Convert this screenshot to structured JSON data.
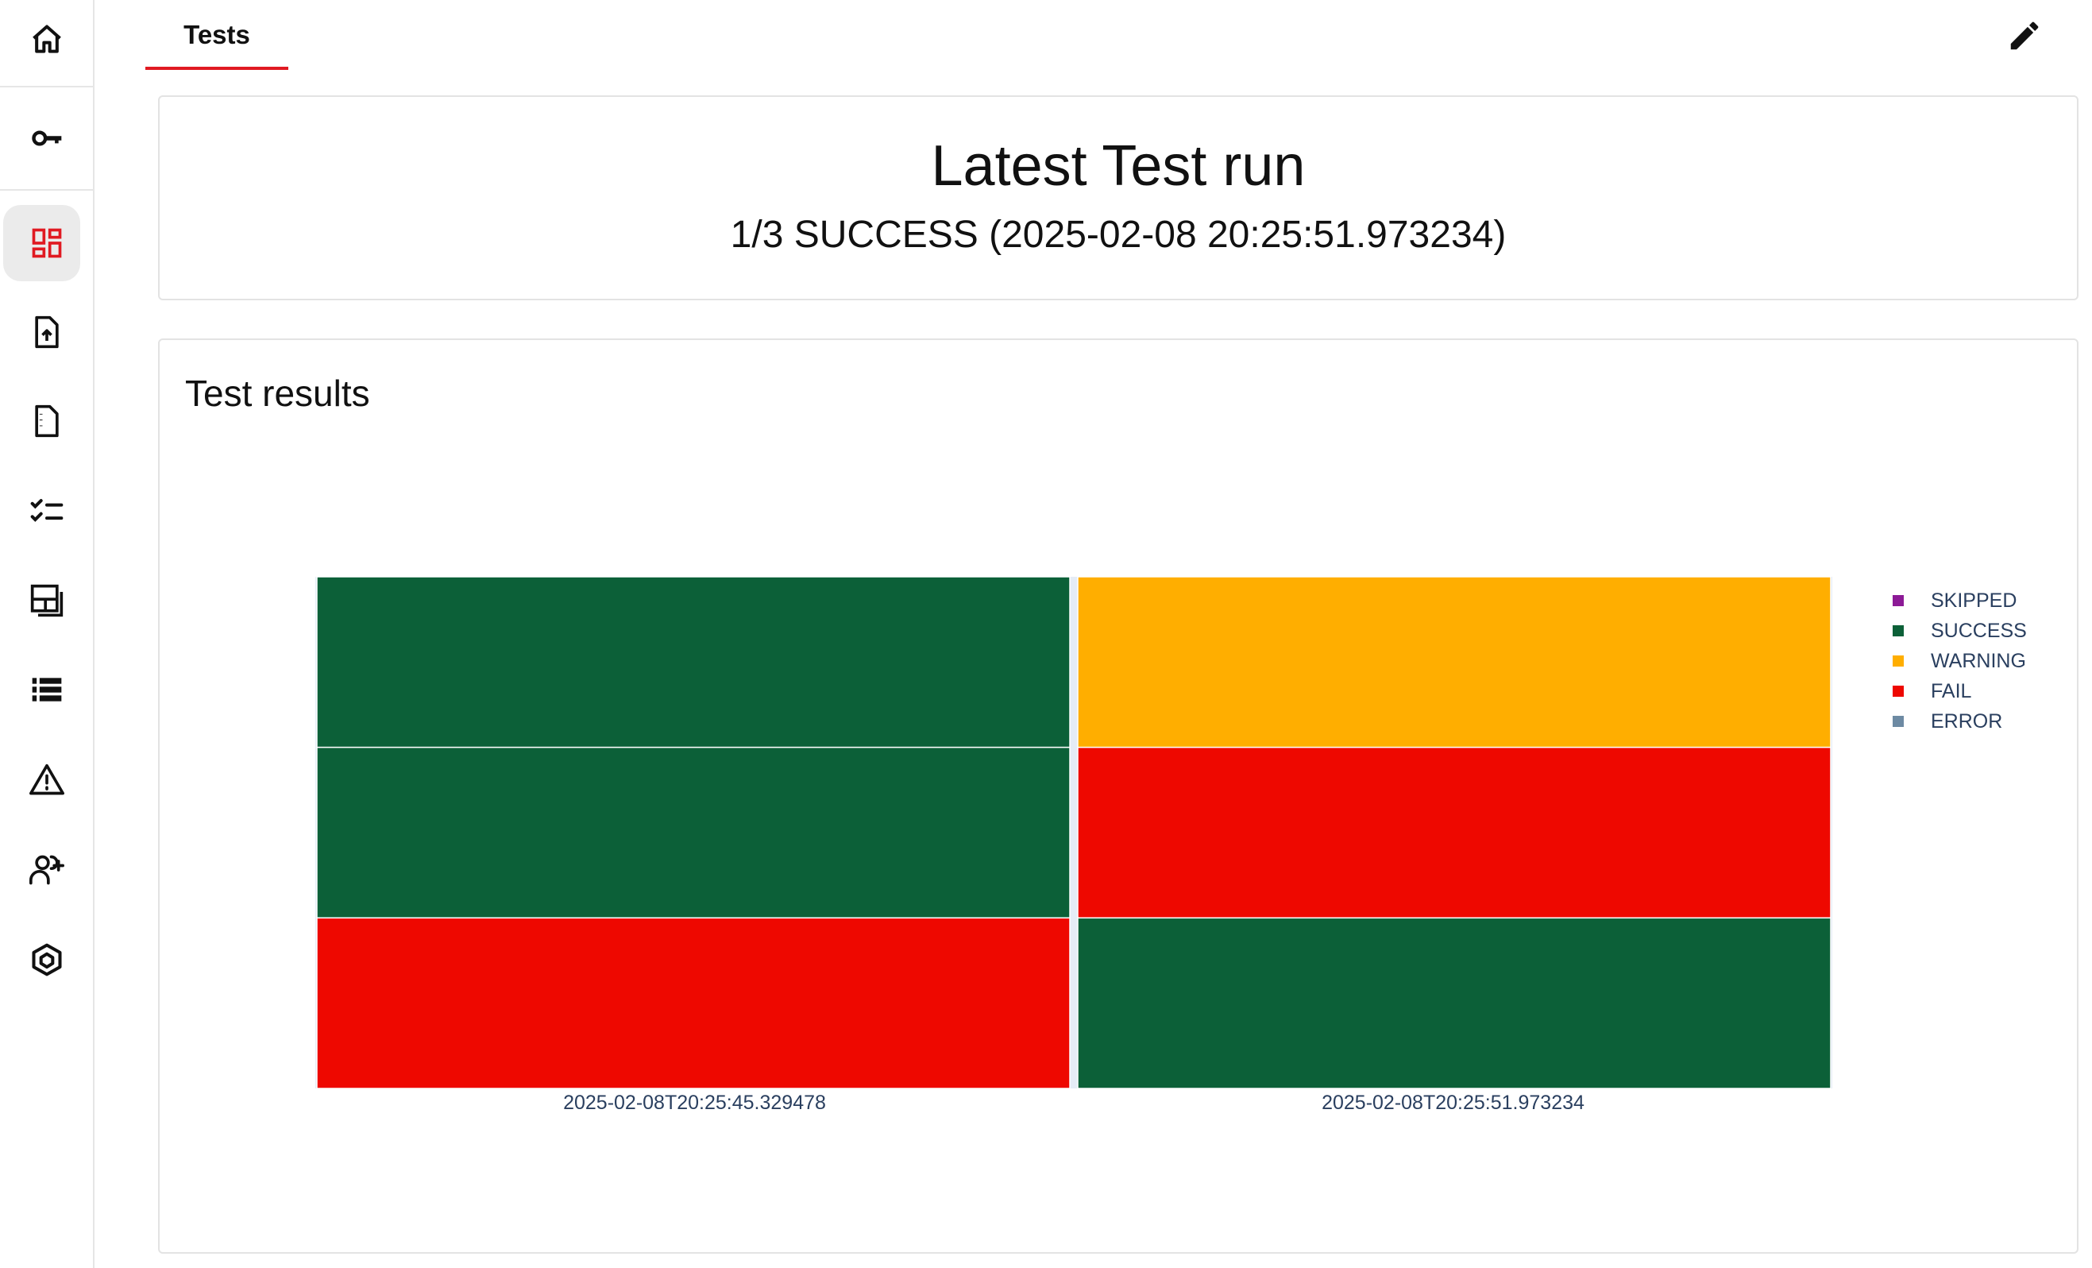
{
  "tabs": [
    {
      "label": "Tests",
      "active": true
    }
  ],
  "sidebar": {
    "items": [
      {
        "icon": "home-icon"
      },
      {
        "icon": "key-icon"
      },
      {
        "icon": "dashboard-icon",
        "active": true
      },
      {
        "icon": "file-upload-icon"
      },
      {
        "icon": "document-icon"
      },
      {
        "icon": "checklist-icon"
      },
      {
        "icon": "layers-icon"
      },
      {
        "icon": "list-icon"
      },
      {
        "icon": "warning-icon"
      },
      {
        "icon": "add-user-icon"
      },
      {
        "icon": "cube-icon"
      }
    ]
  },
  "toolbar": {
    "edit_icon": "pencil-icon"
  },
  "latest_run": {
    "title": "Latest Test run",
    "summary": "1/3 SUCCESS (2025-02-08 20:25:51.973234)"
  },
  "results": {
    "title": "Test results"
  },
  "colors": {
    "accent": "#e01a22",
    "SKIPPED": "#8c1a96",
    "SUCCESS": "#0c6038",
    "WARNING": "#ffae00",
    "FAIL": "#ee0800",
    "ERROR": "#6d8aa3"
  },
  "chart_data": {
    "type": "heatmap",
    "title": "",
    "xlabel": "",
    "ylabel": "",
    "categories": [
      "2025-02-08T20:25:45.329478",
      "2025-02-08T20:25:51.973234"
    ],
    "rows": 3,
    "cells": [
      [
        "SUCCESS",
        "WARNING"
      ],
      [
        "SUCCESS",
        "FAIL"
      ],
      [
        "FAIL",
        "SUCCESS"
      ]
    ],
    "legend": [
      "SKIPPED",
      "SUCCESS",
      "WARNING",
      "FAIL",
      "ERROR"
    ],
    "legend_position": "right",
    "grid": true
  }
}
